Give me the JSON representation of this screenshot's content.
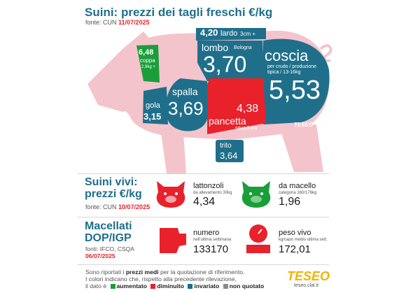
{
  "header": {
    "title": "Suini: prezzi dei tagli freschi €/kg",
    "source_prefix": "fonte: CUN ",
    "source_date": "11/07/2025"
  },
  "cuts": {
    "lardo": {
      "value": "4,20",
      "name": "lardo",
      "note": "3cm +"
    },
    "coppa": {
      "value": "6,48",
      "name": "coppa",
      "note": "2,9kg +"
    },
    "lombo": {
      "value": "3,70",
      "name": "lombo",
      "note": "Bologna"
    },
    "coscia": {
      "value": "5,53",
      "name": "coscia",
      "note1": "per crudo / produzione",
      "note2": "tipica / 13-16kg"
    },
    "gola": {
      "value": "3,15",
      "name": "gola"
    },
    "spalla": {
      "value": "3,69",
      "name": "spalla"
    },
    "pancetta": {
      "value": "4,38",
      "name": "pancetta",
      "note": "squadrata"
    },
    "trito": {
      "value": "3,64",
      "name": "trito"
    },
    "brand": "TESEO"
  },
  "live": {
    "title_line1": "Suini vivi:",
    "title_line2": "prezzi €/kg",
    "source_prefix": "fonte: CUN ",
    "source_date": "10/07/2025",
    "lattonzoli": {
      "name": "lattonzoli",
      "note": "da allevamento 30kg",
      "value": "4,34"
    },
    "macello": {
      "name": "da macello",
      "note": "categoria 160/176kg",
      "value": "1,96"
    }
  },
  "dop": {
    "title_line1": "Macellati",
    "title_line2": "DOP/IGP",
    "source": "fonti: IFCO, CSQA",
    "date": "06/07/2025",
    "numero": {
      "name": "numero",
      "note": "nell'ultima settimana",
      "value": "133170"
    },
    "peso": {
      "name": "peso vivo",
      "note": "kg/capo medio ultima sett.",
      "value": "172,01"
    }
  },
  "footer": {
    "line1_a": "Sono riportati i ",
    "line1_b": "prezzi medi",
    "line1_c": " per la quotazione di riferimento.",
    "line2": "I colori indicano che, rispetto alla precedente rilevazione,",
    "line3_prefix": "il dato è",
    "legend": [
      {
        "label": "aumentato",
        "color": "#1a9e3a"
      },
      {
        "label": "diminuito",
        "color": "#e8212b"
      },
      {
        "label": "invariato",
        "color": "#1f6f8b"
      },
      {
        "label": "non quotato",
        "color": "#8a8a8a"
      }
    ],
    "logo": "TESEO",
    "logo_sub": "teseo.clal.it"
  },
  "colors": {
    "up": "#1a9e3a",
    "down": "#e8212b",
    "same": "#1f6f8b",
    "pig": "#f4c4cc"
  }
}
